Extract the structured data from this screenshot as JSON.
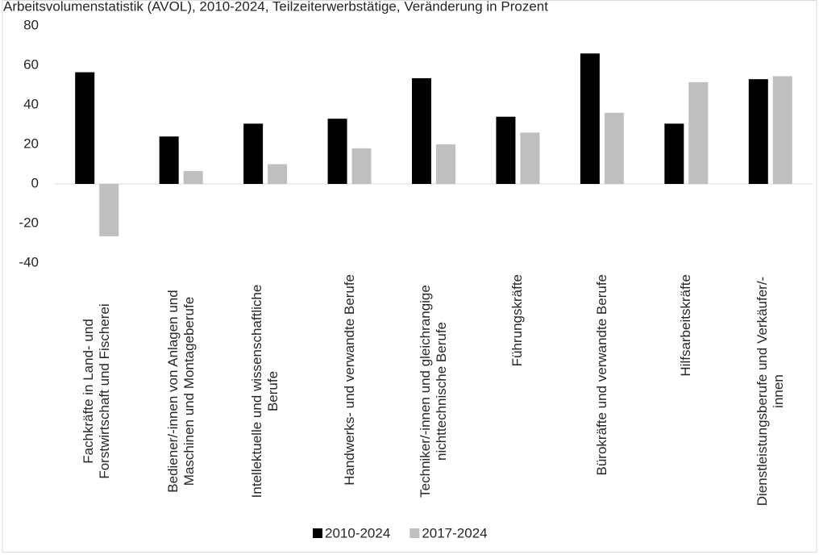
{
  "chart_data": {
    "type": "bar",
    "title": "Arbeitsvolumenstatistik (AVOL), 2010-2024, Teilzeiterwerbstätige, Veränderung in Prozent",
    "categories": [
      "Fachkräfte in Land- und Forstwirtschaft und Fischerei",
      "Bediener/-innen von Anlagen und Maschinen und Montageberufe",
      "Intellektuelle und wissenschaftliche Berufe",
      "Handwerks- und verwandte Berufe",
      "Techniker/-innen und gleichrangige nichttechnische Berufe",
      "Führungskräfte",
      "Bürokräfte und verwandte Berufe",
      "Hilfsarbeitskräfte",
      "Dienstleistungsberufe und Verkäufer/-innen"
    ],
    "series": [
      {
        "name": "2010-2024",
        "color": "#000000",
        "values": [
          56.5,
          24,
          30.5,
          33,
          53.5,
          34,
          66,
          30.5,
          53
        ]
      },
      {
        "name": "2017-2024",
        "color": "#bfbfbf",
        "values": [
          -26.5,
          6.5,
          10,
          18,
          20,
          26,
          36,
          51.5,
          54.5
        ]
      }
    ],
    "ylim": [
      -40,
      80
    ],
    "yticks": [
      -40,
      -20,
      0,
      20,
      40,
      60,
      80
    ],
    "grid": false,
    "legend": "bottom"
  }
}
